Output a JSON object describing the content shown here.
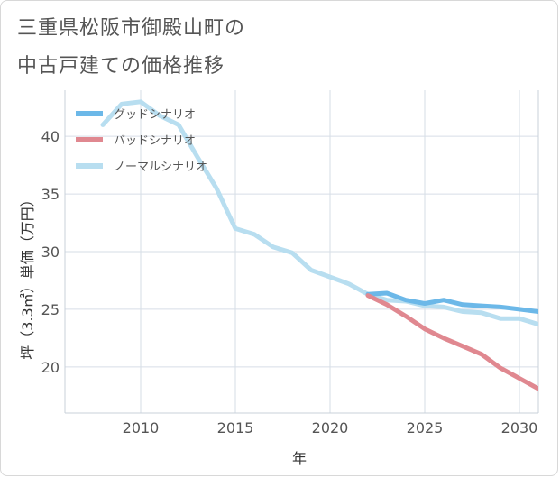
{
  "title_lines": [
    "三重県松阪市御殿山町の",
    "中古戸建ての価格推移"
  ],
  "chart_data": {
    "type": "line",
    "xlabel": "年",
    "ylabel": "坪（3.3㎡）単価（万円）",
    "xlim": [
      2006,
      2031
    ],
    "ylim": [
      16,
      44
    ],
    "x_ticks": [
      2010,
      2015,
      2020,
      2025,
      2030
    ],
    "y_ticks": [
      20,
      25,
      30,
      35,
      40
    ],
    "grid": true,
    "legend_position": "top-left",
    "series": [
      {
        "name": "グッドシナリオ",
        "color": "#6cb8e8",
        "x": [
          2022,
          2023,
          2024,
          2025,
          2026,
          2027,
          2028,
          2029,
          2030,
          2031
        ],
        "y": [
          26.3,
          26.4,
          25.8,
          25.5,
          25.8,
          25.4,
          25.3,
          25.2,
          25.0,
          24.8
        ]
      },
      {
        "name": "バッドシナリオ",
        "color": "#e08890",
        "x": [
          2022,
          2023,
          2024,
          2025,
          2026,
          2027,
          2028,
          2029,
          2030,
          2031
        ],
        "y": [
          26.2,
          25.4,
          24.4,
          23.3,
          22.5,
          21.8,
          21.1,
          19.9,
          19.0,
          18.1
        ]
      },
      {
        "name": "ノーマルシナリオ",
        "color": "#b8def0",
        "x": [
          2008,
          2009,
          2010,
          2011,
          2012,
          2013,
          2014,
          2015,
          2016,
          2017,
          2018,
          2019,
          2020,
          2021,
          2022,
          2023,
          2024,
          2025,
          2026,
          2027,
          2028,
          2029,
          2030,
          2031
        ],
        "y": [
          41.0,
          42.8,
          43.0,
          41.8,
          41.0,
          38.2,
          35.5,
          32.0,
          31.5,
          30.4,
          29.9,
          28.4,
          27.8,
          27.2,
          26.3,
          25.8,
          25.7,
          25.3,
          25.2,
          24.8,
          24.7,
          24.2,
          24.2,
          23.7
        ]
      }
    ]
  }
}
